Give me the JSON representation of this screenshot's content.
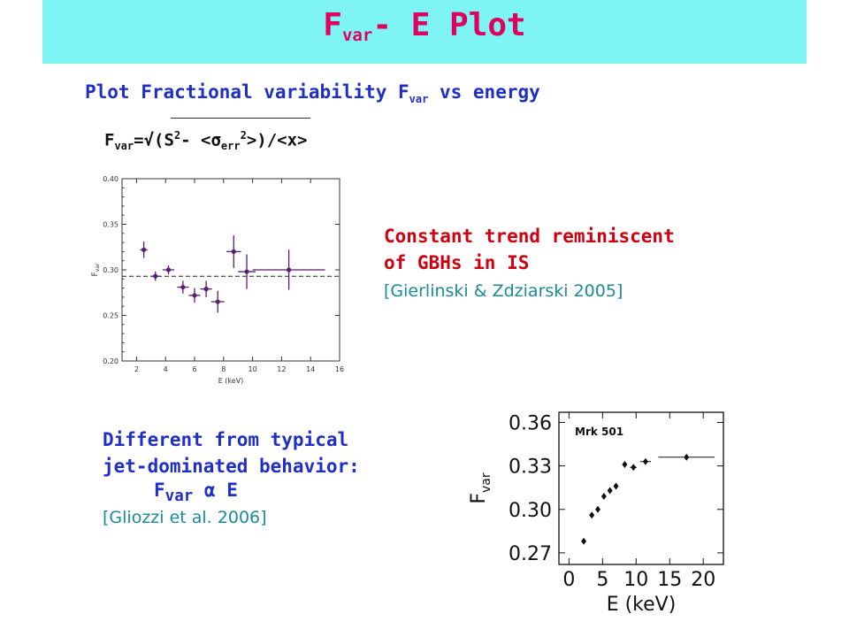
{
  "slide": {
    "title_main": "F",
    "title_sub": "var",
    "title_rest": "- E Plot",
    "subtitle_main": "Plot Fractional variability F",
    "subtitle_sub": "var",
    "subtitle_rest": " vs energy",
    "formula": {
      "f": "F",
      "f_sub": "var",
      "eq_open": "=√(S",
      "sup2": "2",
      "minus": "- <σ",
      "sig_sub": "err",
      "sup2b": "2",
      "close": ">)/<x>"
    },
    "trend_line1": "Constant trend reminiscent",
    "trend_line2": "of GBHs in IS",
    "trend_ref": "[Gierlinski & Zdziarski 2005]",
    "bottom_line1": "Different from typical",
    "bottom_line2": "jet-dominated  behavior:",
    "bottom_formula_f": "F",
    "bottom_formula_sub": "var",
    "bottom_formula_rest": " α E",
    "bottom_ref": "[Gliozzi et al.  2006]"
  },
  "colors": {
    "title_bar": "#7ff4f4",
    "title_text": "#e0005e",
    "blue_text": "#1f2ec4",
    "red_text": "#d00010",
    "teal_text": "#1a8a99",
    "chart1_points": "#5a1e6e"
  },
  "chart_data": [
    {
      "type": "scatter",
      "xlabel": "E (keV)",
      "ylabel": "F_var",
      "xlim": [
        1,
        16
      ],
      "ylim": [
        0.2,
        0.4
      ],
      "xticks": [
        2,
        4,
        6,
        8,
        10,
        12,
        14,
        16
      ],
      "yticks": [
        0.2,
        0.25,
        0.3,
        0.35,
        0.4
      ],
      "ytick_labels": [
        "0.20",
        "0.25",
        "0.30",
        "0.35",
        "0.40"
      ],
      "hline": 0.293,
      "points": [
        {
          "x": 2.5,
          "y": 0.322,
          "xerr": 0.25,
          "yerr": 0.009
        },
        {
          "x": 3.3,
          "y": 0.293,
          "xerr": 0.3,
          "yerr": 0.005
        },
        {
          "x": 4.2,
          "y": 0.3,
          "xerr": 0.4,
          "yerr": 0.005
        },
        {
          "x": 5.2,
          "y": 0.281,
          "xerr": 0.4,
          "yerr": 0.007
        },
        {
          "x": 6.0,
          "y": 0.272,
          "xerr": 0.4,
          "yerr": 0.008
        },
        {
          "x": 6.8,
          "y": 0.279,
          "xerr": 0.4,
          "yerr": 0.009
        },
        {
          "x": 7.6,
          "y": 0.265,
          "xerr": 0.45,
          "yerr": 0.012
        },
        {
          "x": 8.7,
          "y": 0.32,
          "xerr": 0.5,
          "yerr": 0.018
        },
        {
          "x": 9.6,
          "y": 0.298,
          "xerr": 0.6,
          "yerr": 0.019
        },
        {
          "x": 12.5,
          "y": 0.3,
          "xerr": 2.5,
          "yerr": 0.022
        }
      ]
    },
    {
      "type": "scatter",
      "annotation": "Mrk 501",
      "xlabel": "E  (keV)",
      "ylabel": "F_var",
      "xlim": [
        -1.5,
        23
      ],
      "ylim": [
        0.262,
        0.367
      ],
      "xticks": [
        0,
        5,
        10,
        15,
        20
      ],
      "xtick_labels": [
        "0",
        "5",
        "10",
        "15",
        "20"
      ],
      "yticks": [
        0.27,
        0.3,
        0.33,
        0.36
      ],
      "ytick_labels": [
        "0.27",
        "0.30",
        "0.33",
        "0.36"
      ],
      "points": [
        {
          "x": 2.2,
          "y": 0.278,
          "xerr": 0
        },
        {
          "x": 3.4,
          "y": 0.296,
          "xerr": 0
        },
        {
          "x": 4.3,
          "y": 0.3,
          "xerr": 0
        },
        {
          "x": 5.2,
          "y": 0.309,
          "xerr": 0
        },
        {
          "x": 6.1,
          "y": 0.313,
          "xerr": 0
        },
        {
          "x": 7.0,
          "y": 0.316,
          "xerr": 0
        },
        {
          "x": 8.3,
          "y": 0.331,
          "xerr": 0
        },
        {
          "x": 9.6,
          "y": 0.329,
          "xerr": 0.5
        },
        {
          "x": 11.4,
          "y": 0.333,
          "xerr": 0.8
        },
        {
          "x": 17.5,
          "y": 0.336,
          "xerr": 4.2
        }
      ]
    }
  ]
}
